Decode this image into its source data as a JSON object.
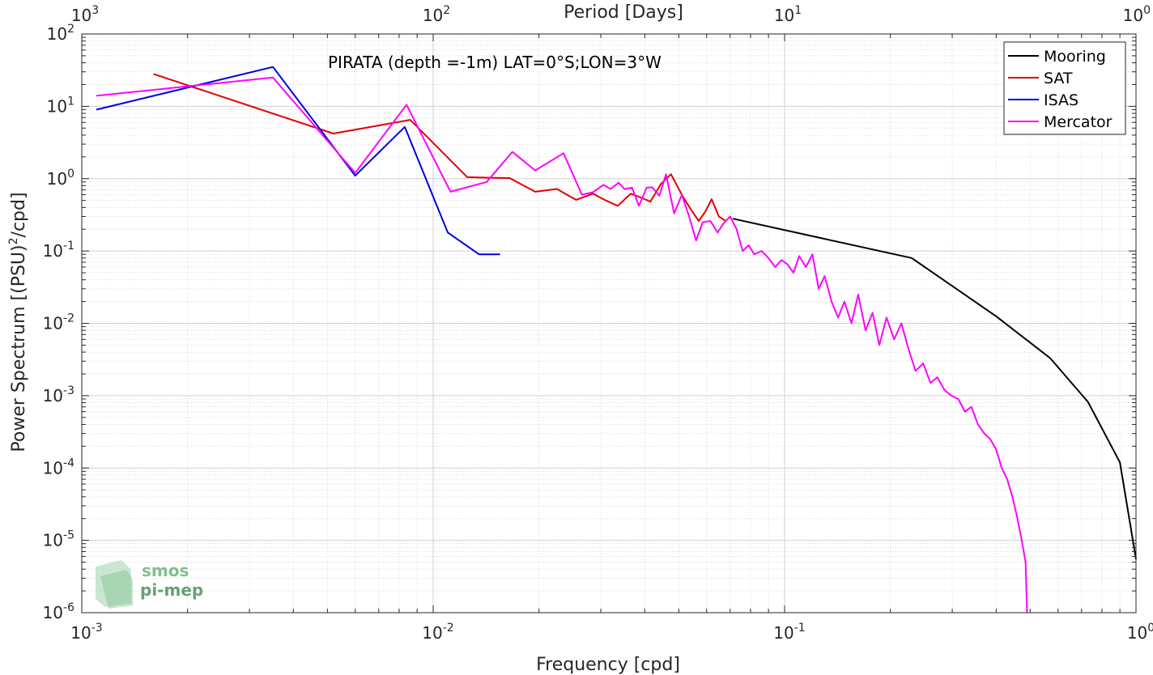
{
  "chart_data": {
    "type": "line",
    "title": "PIRATA (depth =-1m) LAT=0°S;LON=3°W",
    "xlabel": "Frequency [cpd]",
    "ylabel": "Power Spectrum [(PSU)",
    "ylabel_sup": "2",
    "ylabel_tail": "/cpd]",
    "top_xlabel": "Period [Days]",
    "xscale": "log",
    "yscale": "log",
    "xlim": [
      0.001,
      1
    ],
    "ylim": [
      1e-06,
      100
    ],
    "grid": true,
    "legend_position": "top-right",
    "x_ticks": [
      {
        "value": 0.001,
        "base": "10",
        "exp": "-3"
      },
      {
        "value": 0.01,
        "base": "10",
        "exp": "-2"
      },
      {
        "value": 0.1,
        "base": "10",
        "exp": "-1"
      },
      {
        "value": 1,
        "base": "10",
        "exp": "0"
      }
    ],
    "top_ticks": [
      {
        "value": 0.001,
        "base": "10",
        "exp": "3"
      },
      {
        "value": 0.01,
        "base": "10",
        "exp": "2"
      },
      {
        "value": 0.1,
        "base": "10",
        "exp": "1"
      },
      {
        "value": 1,
        "base": "10",
        "exp": "0"
      }
    ],
    "y_ticks": [
      {
        "value": 100,
        "base": "10",
        "exp": "2"
      },
      {
        "value": 10,
        "base": "10",
        "exp": "1"
      },
      {
        "value": 1,
        "base": "10",
        "exp": "0"
      },
      {
        "value": 0.1,
        "base": "10",
        "exp": "-1"
      },
      {
        "value": 0.01,
        "base": "10",
        "exp": "-2"
      },
      {
        "value": 0.001,
        "base": "10",
        "exp": "-3"
      },
      {
        "value": 0.0001,
        "base": "10",
        "exp": "-4"
      },
      {
        "value": 1e-05,
        "base": "10",
        "exp": "-5"
      },
      {
        "value": 1e-06,
        "base": "10",
        "exp": "-6"
      }
    ],
    "series": [
      {
        "name": "Mooring",
        "color": "#000000",
        "x": [
          0.0713,
          0.23,
          0.4,
          0.57,
          0.73,
          0.9,
          1.0
        ],
        "y": [
          0.28,
          0.08,
          0.0125,
          0.0033,
          0.00082,
          0.00012,
          5.5e-06
        ]
      },
      {
        "name": "SAT",
        "color": "#e00000",
        "x": [
          0.0016,
          0.0052,
          0.0086,
          0.0125,
          0.0145,
          0.0165,
          0.0195,
          0.0225,
          0.0255,
          0.0285,
          0.031,
          0.0335,
          0.0365,
          0.039,
          0.0415,
          0.0445,
          0.0475,
          0.051,
          0.054,
          0.057,
          0.0595,
          0.062,
          0.065,
          0.068
        ],
        "y": [
          28,
          4.2,
          6.5,
          1.05,
          1.03,
          1.02,
          0.66,
          0.72,
          0.51,
          0.62,
          0.5,
          0.42,
          0.62,
          0.55,
          0.48,
          0.85,
          1.15,
          0.6,
          0.38,
          0.26,
          0.35,
          0.52,
          0.3,
          0.26
        ]
      },
      {
        "name": "ISAS",
        "color": "#0000e0",
        "x": [
          0.0011,
          0.0035,
          0.006,
          0.0083,
          0.011,
          0.0135,
          0.0155
        ],
        "y": [
          9,
          35,
          1.1,
          5.2,
          0.18,
          0.09,
          0.09
        ]
      },
      {
        "name": "Mercator",
        "color": "#ff00ff",
        "x": [
          0.0011,
          0.0035,
          0.006,
          0.0084,
          0.0112,
          0.0142,
          0.0168,
          0.0195,
          0.0235,
          0.0265,
          0.0285,
          0.0305,
          0.032,
          0.0337,
          0.035,
          0.0368,
          0.0385,
          0.0405,
          0.042,
          0.044,
          0.046,
          0.0485,
          0.051,
          0.0535,
          0.056,
          0.0585,
          0.0615,
          0.0645,
          0.067,
          0.07,
          0.073,
          0.076,
          0.079,
          0.082,
          0.086,
          0.09,
          0.094,
          0.098,
          0.102,
          0.106,
          0.11,
          0.115,
          0.12,
          0.125,
          0.13,
          0.136,
          0.142,
          0.148,
          0.155,
          0.162,
          0.17,
          0.178,
          0.186,
          0.195,
          0.205,
          0.215,
          0.225,
          0.236,
          0.248,
          0.26,
          0.272,
          0.285,
          0.298,
          0.312,
          0.326,
          0.34,
          0.355,
          0.37,
          0.385,
          0.4,
          0.415,
          0.43,
          0.445,
          0.46,
          0.473,
          0.485,
          0.49
        ],
        "y": [
          14,
          25,
          1.2,
          10.5,
          0.66,
          0.9,
          2.35,
          1.3,
          2.25,
          0.6,
          0.65,
          0.82,
          0.72,
          0.88,
          0.72,
          0.75,
          0.42,
          0.75,
          0.76,
          0.58,
          1.15,
          0.33,
          0.6,
          0.3,
          0.14,
          0.25,
          0.26,
          0.18,
          0.24,
          0.3,
          0.2,
          0.1,
          0.12,
          0.09,
          0.1,
          0.08,
          0.06,
          0.075,
          0.065,
          0.05,
          0.085,
          0.06,
          0.09,
          0.03,
          0.045,
          0.02,
          0.012,
          0.02,
          0.01,
          0.025,
          0.008,
          0.014,
          0.005,
          0.012,
          0.006,
          0.01,
          0.0045,
          0.0022,
          0.0028,
          0.0015,
          0.0018,
          0.0012,
          0.001,
          0.0009,
          0.0006,
          0.0007,
          0.0004,
          0.0003,
          0.00025,
          0.00018,
          0.0001,
          7e-05,
          4e-05,
          2e-05,
          1e-05,
          5e-06,
          1e-06
        ]
      }
    ]
  },
  "logo": {
    "line1": "smos",
    "line2": "pi-mep",
    "color": "#7fbf8f"
  }
}
